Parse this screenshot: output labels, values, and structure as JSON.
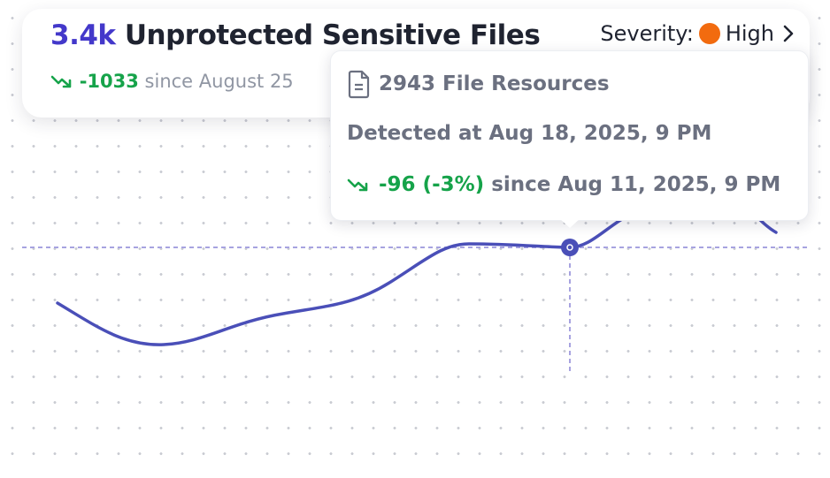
{
  "header": {
    "value": "3.4k",
    "title": "Unprotected Sensitive Files",
    "change": "-1033",
    "change_text": "since August 25",
    "severity_label": "Severity:",
    "severity": "High"
  },
  "tooltip": {
    "title": "2943 File Resources",
    "detected": "Detected at Aug 18, 2025, 9 PM",
    "change": "-96 (-3%)",
    "change_text": "since Aug 11, 2025, 9 PM"
  }
}
